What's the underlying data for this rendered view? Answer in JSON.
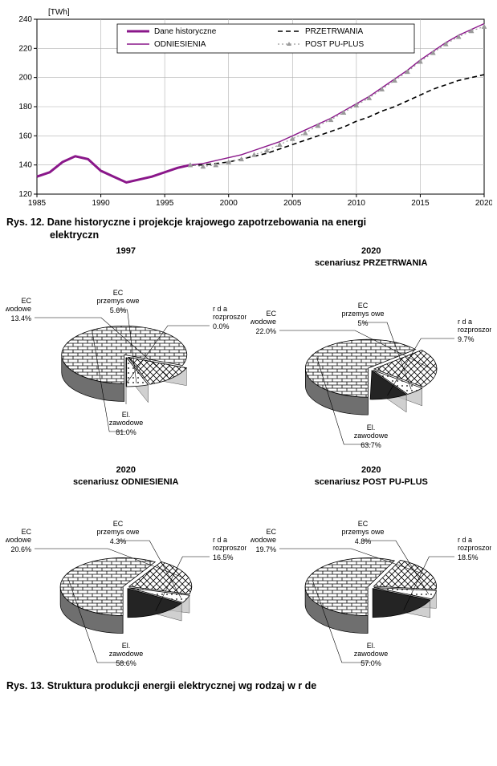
{
  "line_chart": {
    "type": "line",
    "unit_label": "[TWh]",
    "x": [
      1985,
      1986,
      1987,
      1988,
      1989,
      1990,
      1991,
      1992,
      1993,
      1994,
      1995,
      1996,
      1997,
      1998,
      1999,
      2000,
      2001,
      2002,
      2003,
      2004,
      2005,
      2006,
      2007,
      2008,
      2009,
      2010,
      2011,
      2012,
      2013,
      2014,
      2015,
      2016,
      2017,
      2018,
      2019,
      2020
    ],
    "series": [
      {
        "name": "Dane historyczne",
        "color": "#8a178a",
        "width": 3,
        "dash": "",
        "marker": "none",
        "y": [
          132,
          135,
          142,
          146,
          144,
          136,
          132,
          128,
          130,
          132,
          135,
          138,
          140,
          null,
          null,
          null,
          null,
          null,
          null,
          null,
          null,
          null,
          null,
          null,
          null,
          null,
          null,
          null,
          null,
          null,
          null,
          null,
          null,
          null,
          null,
          null
        ]
      },
      {
        "name": "PRZETRWANIA",
        "color": "#000000",
        "width": 1.6,
        "dash": "6 4",
        "marker": "none",
        "y": [
          null,
          null,
          null,
          null,
          null,
          null,
          null,
          null,
          null,
          null,
          null,
          null,
          140,
          140,
          141,
          142,
          144,
          146,
          148,
          151,
          154,
          157,
          160,
          163,
          166,
          170,
          173,
          177,
          180,
          184,
          188,
          192,
          195,
          198,
          200,
          202
        ]
      },
      {
        "name": "ODNIESIENIA",
        "color": "#8a178a",
        "width": 1.4,
        "dash": "",
        "marker": "none",
        "y": [
          null,
          null,
          null,
          null,
          null,
          null,
          null,
          null,
          null,
          null,
          null,
          null,
          140,
          141,
          143,
          145,
          147,
          150,
          153,
          156,
          160,
          164,
          168,
          172,
          177,
          182,
          187,
          193,
          199,
          205,
          212,
          218,
          224,
          229,
          233,
          237
        ]
      },
      {
        "name": "POST  PU-PLUS",
        "color": "#9a9a9a",
        "width": 1.2,
        "dash": "2 3",
        "marker": "triangle",
        "y": [
          null,
          null,
          null,
          null,
          null,
          null,
          null,
          null,
          null,
          null,
          null,
          null,
          140,
          139,
          140,
          142,
          144,
          147,
          150,
          154,
          158,
          162,
          167,
          171,
          176,
          181,
          186,
          192,
          198,
          204,
          211,
          217,
          223,
          228,
          232,
          235
        ]
      }
    ],
    "xlim": [
      1985,
      2020
    ],
    "ylim": [
      120,
      240
    ],
    "xticks": [
      1985,
      1990,
      1995,
      2000,
      2005,
      2010,
      2015,
      2020
    ],
    "yticks": [
      120,
      140,
      160,
      180,
      200,
      220,
      240
    ],
    "grid_color": "#b0b0b0",
    "background_color": "#ffffff",
    "axis_fontsize": 10,
    "legend_fontsize": 10,
    "legend_box": {
      "border": "#000000",
      "fill": "#ffffff"
    }
  },
  "fig12_line1": "Rys. 12. Dane historyczne i projekcje krajowego zapotrzebowania na energi",
  "fig12_line2": "elektryczn",
  "pies": [
    {
      "title": "1997",
      "subtitle": "",
      "slices": [
        {
          "label": "El.\nzawodowe",
          "pct": 81.0,
          "pct_txt": "81.0%",
          "pattern": "brick"
        },
        {
          "label": "EC\nzawodowe",
          "pct": 13.4,
          "pct_txt": "13.4%",
          "pattern": "cross"
        },
        {
          "label": "EC\nprzemys owe",
          "pct": 5.6,
          "pct_txt": "5.6%",
          "pattern": "dots"
        },
        {
          "label": "r d a\nrozproszone",
          "pct": 0.0,
          "pct_txt": "0.0%",
          "pattern": "solid"
        }
      ]
    },
    {
      "title": "2020",
      "subtitle": "scenariusz PRZETRWANIA",
      "slices": [
        {
          "label": "El.\nzawodowe",
          "pct": 63.7,
          "pct_txt": "63.7%",
          "pattern": "brick"
        },
        {
          "label": "EC\nzawodowe",
          "pct": 22.0,
          "pct_txt": "22.0%",
          "pattern": "cross"
        },
        {
          "label": "EC\nprzemys owe",
          "pct": 5.0,
          "pct_txt": "5%",
          "pattern": "dots"
        },
        {
          "label": "r d a\nrozproszone",
          "pct": 9.7,
          "pct_txt": "9.7%",
          "pattern": "solid"
        }
      ]
    },
    {
      "title": "2020",
      "subtitle": "scenariusz ODNIESIENIA",
      "slices": [
        {
          "label": "El.\nzawodowe",
          "pct": 58.6,
          "pct_txt": "58.6%",
          "pattern": "brick"
        },
        {
          "label": "EC\nzawodowe",
          "pct": 20.6,
          "pct_txt": "20.6%",
          "pattern": "cross"
        },
        {
          "label": "EC\nprzemys owe",
          "pct": 4.3,
          "pct_txt": "4.3%",
          "pattern": "dots"
        },
        {
          "label": "r d a\nrozproszone",
          "pct": 16.5,
          "pct_txt": "16.5%",
          "pattern": "solid"
        }
      ]
    },
    {
      "title": "2020",
      "subtitle": "scenariusz POST  PU-PLUS",
      "slices": [
        {
          "label": "El.\nzawodowe",
          "pct": 57.0,
          "pct_txt": "57.0%",
          "pattern": "brick"
        },
        {
          "label": "EC\nzawodowe",
          "pct": 19.7,
          "pct_txt": "19.7%",
          "pattern": "cross"
        },
        {
          "label": "EC\nprzemys owe",
          "pct": 4.8,
          "pct_txt": "4.8%",
          "pattern": "dots"
        },
        {
          "label": "r d a\nrozproszone",
          "pct": 18.5,
          "pct_txt": "18.5%",
          "pattern": "solid"
        }
      ]
    }
  ],
  "pie_colors": {
    "brick": "#ffffff",
    "brick_stroke": "#000000",
    "cross": "#ffffff",
    "cross_stroke": "#000000",
    "dots": "#ffffff",
    "dots_stroke": "#000000",
    "solid": "#242424",
    "side": "#6f6f6f",
    "side_light": "#bdbdbd",
    "outline": "#000000",
    "leader": "#000000",
    "label_fontsize": 9
  },
  "fig13_line1": "Rys. 13. Struktura produkcji energii elektrycznej wg rodzaj  w  r  de"
}
